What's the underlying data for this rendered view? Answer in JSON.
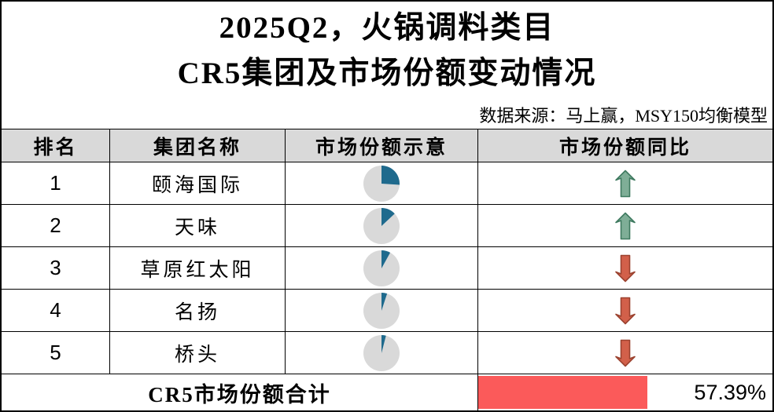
{
  "title": {
    "line1": "2025Q2，火锅调料类目",
    "line2": "CR5集团及市场份额变动情况"
  },
  "source_note": "数据来源：马上赢，MSY150均衡模型",
  "table": {
    "headers": {
      "rank": "排名",
      "group": "集团名称",
      "share": "市场份额示意",
      "yoy": "市场份额同比"
    },
    "rows": [
      {
        "rank": "1",
        "group": "颐海国际",
        "share_pct_est": 26,
        "yoy_direction": "up"
      },
      {
        "rank": "2",
        "group": "天味",
        "share_pct_est": 13,
        "yoy_direction": "up"
      },
      {
        "rank": "3",
        "group": "草原红太阳",
        "share_pct_est": 8,
        "yoy_direction": "down"
      },
      {
        "rank": "4",
        "group": "名扬",
        "share_pct_est": 5,
        "yoy_direction": "down"
      },
      {
        "rank": "5",
        "group": "桥头",
        "share_pct_est": 4,
        "yoy_direction": "down"
      }
    ],
    "footer": {
      "label": "CR5市场份额合计",
      "value": "57.39%",
      "bar_pct": 57.39
    }
  },
  "colors": {
    "pie_fill": "#1F6A8D",
    "pie_rest": "#D9D9D9",
    "header_bg": "#D9D9D9",
    "up_arrow_fill": "#7FAE97",
    "up_arrow_stroke": "#3F7A60",
    "down_arrow_fill": "#D2604A",
    "down_arrow_stroke": "#9C4330",
    "databar_red": "#FB5A5A"
  },
  "chart_data": {
    "type": "table",
    "title": "2025Q2，火锅调料类目 CR5集团及市场份额变动情况",
    "source": "数据来源：马上赢，MSY150均衡模型",
    "columns": [
      "排名",
      "集团名称",
      "市场份额示意",
      "市场份额同比"
    ],
    "rows": [
      {
        "rank": 1,
        "group": "颐海国际",
        "share_pct_est": 26,
        "yoy": "up"
      },
      {
        "rank": 2,
        "group": "天味",
        "share_pct_est": 13,
        "yoy": "up"
      },
      {
        "rank": 3,
        "group": "草原红太阳",
        "share_pct_est": 8,
        "yoy": "down"
      },
      {
        "rank": 4,
        "group": "名扬",
        "share_pct_est": 5,
        "yoy": "down"
      },
      {
        "rank": 5,
        "group": "桥头",
        "share_pct_est": 4,
        "yoy": "down"
      }
    ],
    "total": {
      "label": "CR5市场份额合计",
      "value_pct": 57.39
    },
    "notes": "pie slices are unlabeled visual indicators; percentages estimated from slice angles; red data bar length encodes 57.39%"
  }
}
